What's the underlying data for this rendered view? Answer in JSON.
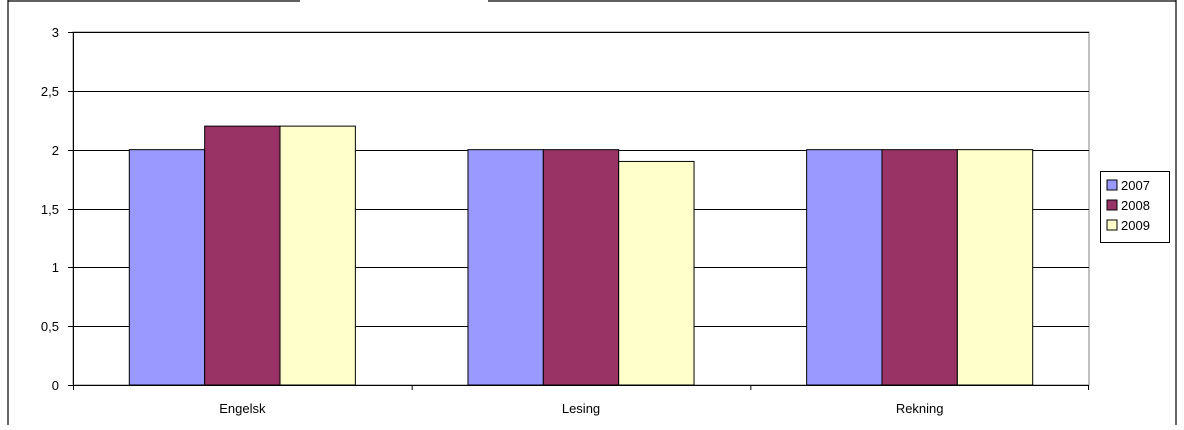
{
  "chart_data": {
    "type": "bar",
    "categories": [
      "Engelsk",
      "Lesing",
      "Rekning"
    ],
    "series": [
      {
        "name": "2007",
        "values": [
          2.0,
          2.0,
          2.0
        ],
        "color": "#9999ff"
      },
      {
        "name": "2008",
        "values": [
          2.2,
          2.0,
          2.0
        ],
        "color": "#993366"
      },
      {
        "name": "2009",
        "values": [
          2.2,
          1.9,
          2.0
        ],
        "color": "#ffffcc"
      }
    ],
    "y_ticks": [
      "0",
      "0,5",
      "1",
      "1,5",
      "2",
      "2,5",
      "3"
    ],
    "ylim": [
      0,
      3
    ],
    "xlabel": "",
    "ylabel": "",
    "grid": true,
    "legend_position": "right"
  }
}
